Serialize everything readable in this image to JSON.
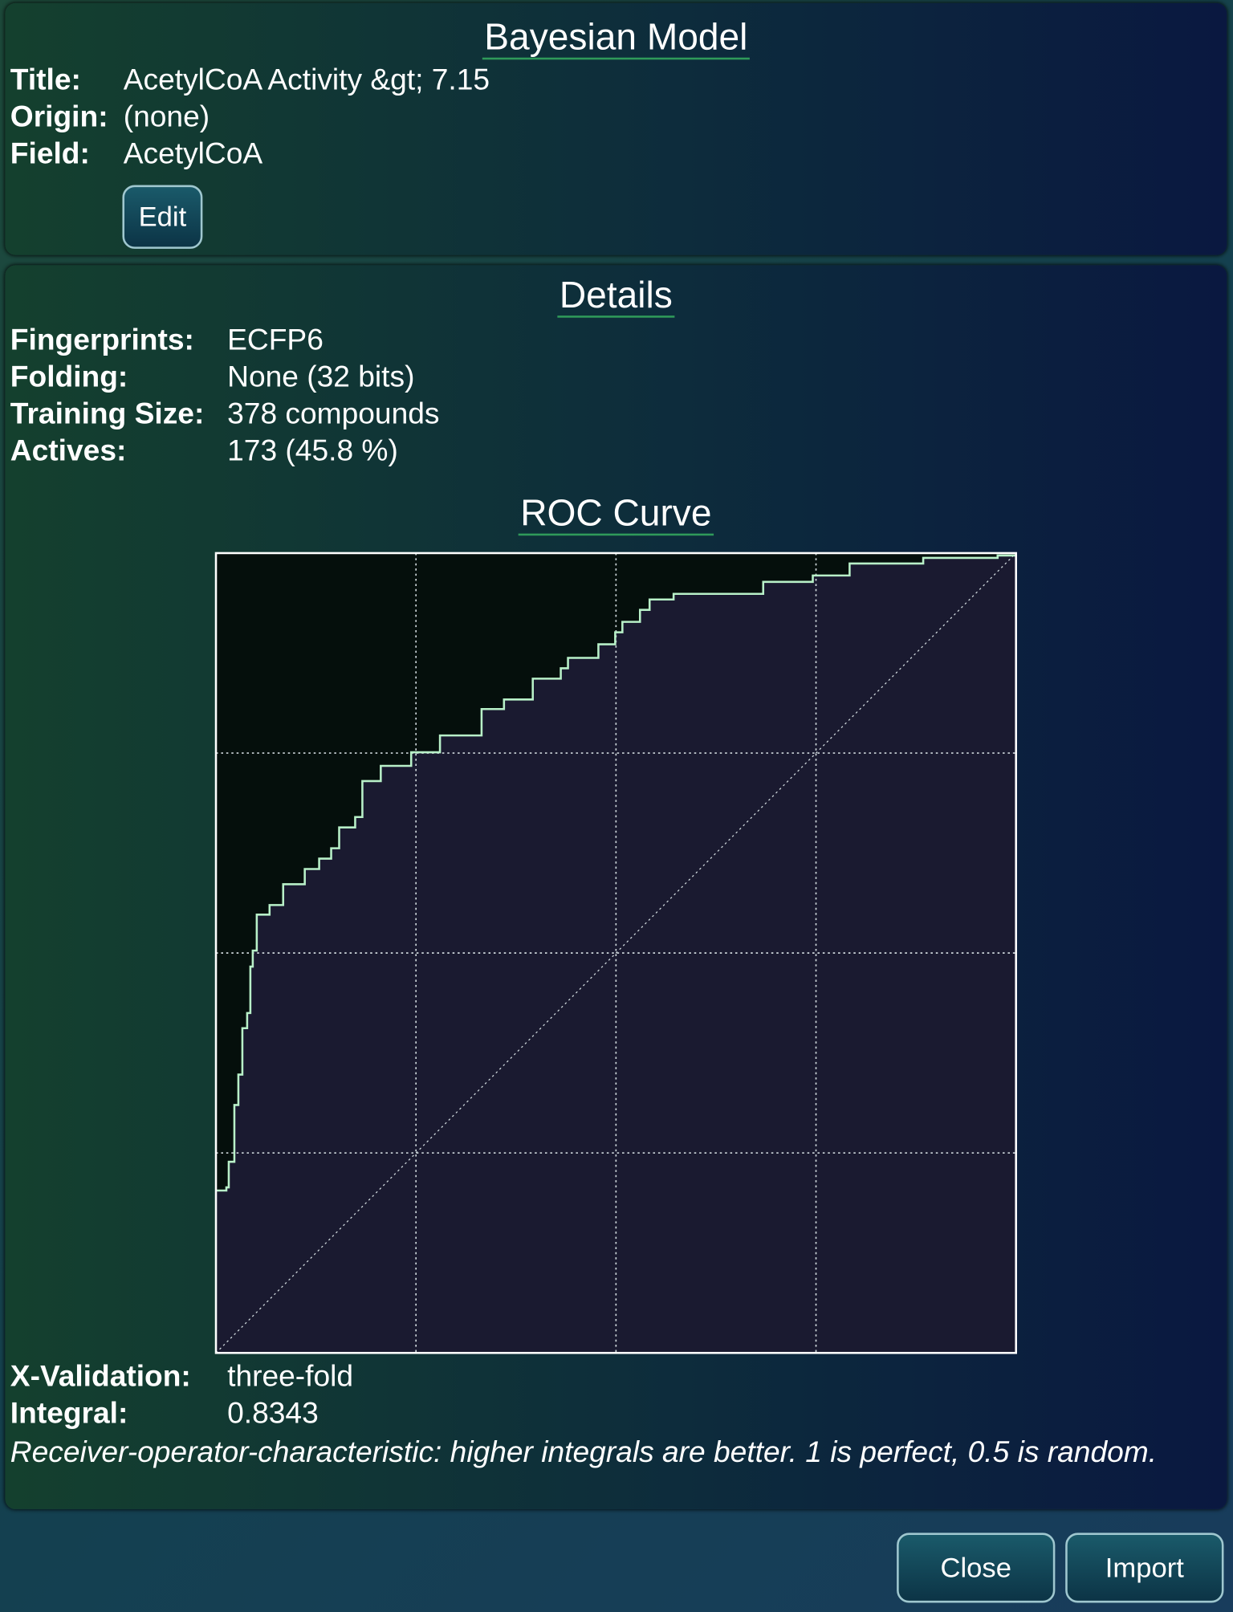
{
  "header": {
    "title": "Bayesian Model",
    "fields": [
      {
        "label": "Title:",
        "value": "AcetylCoA Activity &gt; 7.15"
      },
      {
        "label": "Origin:",
        "value": "(none)"
      },
      {
        "label": "Field:",
        "value": "AcetylCoA"
      }
    ],
    "edit_button": "Edit"
  },
  "details": {
    "title": "Details",
    "fields": [
      {
        "label": "Fingerprints:",
        "value": "ECFP6"
      },
      {
        "label": "Folding:",
        "value": "None (32 bits)"
      },
      {
        "label": "Training Size:",
        "value": "378 compounds"
      },
      {
        "label": "Actives:",
        "value": "173 (45.8 %)"
      }
    ]
  },
  "chart_data": {
    "type": "line",
    "title": "ROC Curve",
    "color": "#b8f0c8",
    "grid": true,
    "x": [
      0,
      0.013,
      0.016,
      0.023,
      0.028,
      0.033,
      0.039,
      0.043,
      0.046,
      0.051,
      0.067,
      0.084,
      0.111,
      0.129,
      0.144,
      0.154,
      0.174,
      0.183,
      0.206,
      0.244,
      0.28,
      0.332,
      0.36,
      0.396,
      0.431,
      0.44,
      0.478,
      0.499,
      0.508,
      0.53,
      0.542,
      0.572,
      0.684,
      0.746,
      0.792,
      0.884,
      0.977,
      1
    ],
    "values": [
      0.203,
      0.207,
      0.239,
      0.31,
      0.348,
      0.406,
      0.425,
      0.483,
      0.503,
      0.548,
      0.56,
      0.586,
      0.605,
      0.618,
      0.631,
      0.657,
      0.67,
      0.715,
      0.734,
      0.751,
      0.772,
      0.805,
      0.817,
      0.843,
      0.856,
      0.869,
      0.886,
      0.901,
      0.914,
      0.929,
      0.942,
      0.949,
      0.964,
      0.972,
      0.987,
      0.994,
      0.997,
      1
    ],
    "xlim": [
      0,
      1
    ],
    "ylim": [
      0,
      1
    ],
    "xticks": [
      0,
      0.25,
      0.5,
      0.75,
      1
    ],
    "yticks": [
      0,
      0.25,
      0.5,
      0.75,
      1
    ]
  },
  "validation": {
    "fields": [
      {
        "label": "X-Validation:",
        "value": "three-fold"
      },
      {
        "label": "Integral:",
        "value": "0.8343"
      }
    ],
    "note": "Receiver-operator-characteristic: higher integrals are better. 1 is perfect, 0.5 is random."
  },
  "buttons": [
    "Close",
    "Import"
  ]
}
